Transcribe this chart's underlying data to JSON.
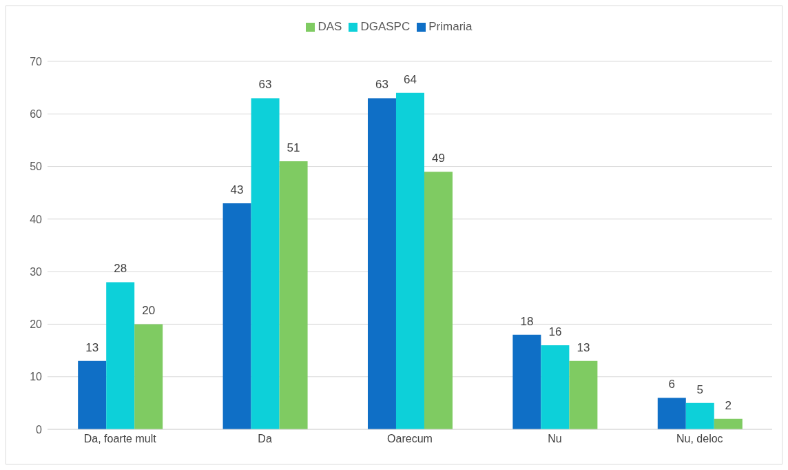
{
  "chart_data": {
    "type": "bar",
    "categories": [
      "Da, foarte mult",
      "Da",
      "Oarecum",
      "Nu",
      "Nu, deloc"
    ],
    "series": [
      {
        "name": "Primaria",
        "color": "#0f6fc6",
        "values": [
          13,
          43,
          63,
          18,
          6
        ]
      },
      {
        "name": "DGASPC",
        "color": "#0dd0d9",
        "values": [
          28,
          63,
          64,
          16,
          5
        ]
      },
      {
        "name": "DAS",
        "color": "#7fcb62",
        "values": [
          20,
          51,
          49,
          13,
          2
        ]
      }
    ],
    "ylim": [
      0,
      70
    ],
    "yticks": [
      0,
      10,
      20,
      30,
      40,
      50,
      60,
      70
    ],
    "grid": "y",
    "legend": "top",
    "data_labels": true
  }
}
